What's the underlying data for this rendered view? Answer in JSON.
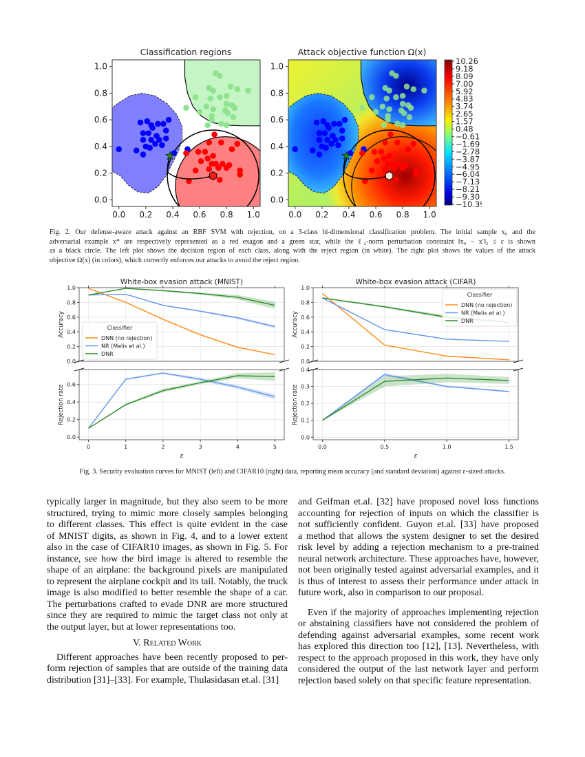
{
  "figure2": {
    "left_title": "Classification regions",
    "right_title": "Attack objective function Ω(x)",
    "x_ticks": [
      "0.0",
      "0.2",
      "0.4",
      "0.6",
      "0.8",
      "1.0"
    ],
    "y_ticks": [
      "0.0",
      "0.2",
      "0.4",
      "0.6",
      "0.8",
      "1.0"
    ],
    "colorbar": {
      "colormap": "jet",
      "ticks": [
        "10.26",
        "9.18",
        "8.09",
        "7.00",
        "5.92",
        "4.83",
        "3.74",
        "2.65",
        "1.57",
        "0.48",
        "−0.61",
        "−1.69",
        "−2.78",
        "−3.87",
        "−4.95",
        "−6.04",
        "−7.13",
        "−8.21",
        "−9.30",
        "−10.39"
      ]
    },
    "caption_lines": [
      "Fig. 2.  Our defense-aware attack against an RBF SVM with rejection, on a 3-class bi-dimensional classification problem. The initial sample x₀ and the",
      "adversarial example x* are respectively represented as a red exagon and a green star, while the ℓ₂-norm perturbation constraint ‖x₀ − x′‖₂ ≤ ε is shown",
      "as a black circle. The left plot shows the decision region of each class, along with the reject region (in white). The right plot shows the values of the attack",
      "objective Ω(x) (in colors), which correctly enforces our attacks to avoid the reject region."
    ]
  },
  "chart_data": [
    {
      "type": "scatter",
      "title": "Classification regions / Attack objective function Ω(x)",
      "xlim": [
        -0.05,
        1.05
      ],
      "ylim": [
        -0.05,
        1.05
      ],
      "classes": [
        {
          "color": "#0000ff",
          "region_color": "#8080ff",
          "points": [
            [
              0.0,
              0.38
            ],
            [
              0.13,
              0.37
            ],
            [
              0.18,
              0.34
            ],
            [
              0.16,
              0.58
            ],
            [
              0.21,
              0.59
            ],
            [
              0.24,
              0.56
            ],
            [
              0.29,
              0.57
            ],
            [
              0.33,
              0.57
            ],
            [
              0.37,
              0.6
            ],
            [
              0.35,
              0.52
            ],
            [
              0.18,
              0.5
            ],
            [
              0.22,
              0.5
            ],
            [
              0.28,
              0.48
            ],
            [
              0.18,
              0.45
            ],
            [
              0.24,
              0.45
            ],
            [
              0.3,
              0.45
            ],
            [
              0.35,
              0.46
            ],
            [
              0.2,
              0.4
            ],
            [
              0.27,
              0.42
            ],
            [
              0.32,
              0.41
            ],
            [
              0.23,
              0.39
            ],
            [
              0.25,
              0.54
            ],
            [
              0.41,
              0.35
            ],
            [
              0.51,
              0.38
            ]
          ]
        },
        {
          "color": "#8fe38f",
          "region_color": "#c5f5c5",
          "points": [
            [
              0.72,
              0.95
            ],
            [
              0.75,
              0.93
            ],
            [
              0.67,
              0.84
            ],
            [
              0.7,
              0.82
            ],
            [
              0.83,
              0.85
            ],
            [
              0.88,
              0.83
            ],
            [
              0.96,
              0.82
            ],
            [
              0.57,
              0.77
            ],
            [
              0.68,
              0.76
            ],
            [
              0.75,
              0.77
            ],
            [
              0.8,
              0.78
            ],
            [
              0.8,
              0.72
            ],
            [
              0.84,
              0.71
            ],
            [
              0.86,
              0.69
            ],
            [
              0.65,
              0.7
            ],
            [
              0.7,
              0.68
            ],
            [
              0.6,
              0.66
            ],
            [
              0.5,
              0.69
            ],
            [
              0.79,
              0.67
            ],
            [
              0.81,
              0.65
            ],
            [
              0.85,
              0.62
            ],
            [
              0.69,
              0.63
            ],
            [
              0.69,
              0.6
            ],
            [
              0.76,
              0.57
            ],
            [
              0.8,
              0.56
            ],
            [
              0.66,
              0.56
            ]
          ]
        },
        {
          "color": "#ff0000",
          "region_color": "#ff8080",
          "points": [
            [
              0.71,
              0.49
            ],
            [
              0.67,
              0.43
            ],
            [
              0.76,
              0.43
            ],
            [
              0.88,
              0.42
            ],
            [
              0.84,
              0.38
            ],
            [
              0.59,
              0.36
            ],
            [
              0.64,
              0.36
            ],
            [
              0.5,
              0.35
            ],
            [
              0.7,
              0.33
            ],
            [
              0.61,
              0.29
            ],
            [
              0.66,
              0.31
            ],
            [
              0.69,
              0.27
            ],
            [
              0.72,
              0.27
            ],
            [
              0.77,
              0.27
            ],
            [
              0.74,
              0.24
            ],
            [
              0.8,
              0.24
            ],
            [
              0.67,
              0.23
            ],
            [
              0.57,
              0.22
            ],
            [
              0.9,
              0.22
            ],
            [
              0.9,
              0.19
            ],
            [
              0.75,
              0.15
            ],
            [
              0.52,
              0.14
            ],
            [
              0.82,
              0.26
            ]
          ]
        }
      ],
      "initial_sample": [
        0.7,
        0.18
      ],
      "adversarial_example": [
        0.38,
        0.33
      ],
      "perturbation_radius": 0.34
    },
    {
      "type": "line",
      "title": "White-box evasion attack (MNIST)",
      "xlabel": "ε",
      "x": [
        0,
        1,
        2,
        3,
        4,
        5
      ],
      "x_ticks": [
        "0",
        "1",
        "2",
        "3",
        "4",
        "5"
      ],
      "xlim": [
        -0.25,
        5.25
      ],
      "grid": true,
      "legend": {
        "title": "Classifier",
        "placement": "lower-left"
      },
      "panels": [
        {
          "ylabel": "Accuracy",
          "ylim": [
            0,
            1.0
          ],
          "y_ticks": [
            "0.0",
            "0.2",
            "0.4",
            "0.6",
            "0.8",
            "1.0"
          ],
          "series": [
            {
              "name": "DNN (no rejection)",
              "color": "#ff8c1a",
              "values": [
                0.99,
                0.8,
                0.57,
                0.36,
                0.19,
                0.09
              ],
              "std": [
                0.005,
                0.008,
                0.01,
                0.01,
                0.01,
                0.008
              ]
            },
            {
              "name": "NR (Melis et al.)",
              "color": "#6495ed",
              "values": [
                0.9,
                0.91,
                0.76,
                0.68,
                0.59,
                0.47
              ],
              "std": [
                0.005,
                0.005,
                0.008,
                0.01,
                0.015,
                0.02
              ]
            },
            {
              "name": "DNR",
              "color": "#2e8b2e",
              "values": [
                0.9,
                0.99,
                0.96,
                0.92,
                0.87,
                0.76
              ],
              "std": [
                0.005,
                0.005,
                0.01,
                0.015,
                0.03,
                0.05
              ]
            }
          ]
        },
        {
          "ylabel": "Rejection rate",
          "ylim": [
            -0.03,
            0.77
          ],
          "y_ticks": [
            "0.0",
            "0.2",
            "0.4",
            "0.6"
          ],
          "series": [
            {
              "name": "NR (Melis et al.)",
              "color": "#6495ed",
              "values": [
                0.1,
                0.66,
                0.73,
                0.66,
                0.57,
                0.46
              ],
              "std": [
                0.003,
                0.008,
                0.01,
                0.02,
                0.02,
                0.03
              ]
            },
            {
              "name": "DNR",
              "color": "#2e8b2e",
              "values": [
                0.1,
                0.37,
                0.53,
                0.62,
                0.7,
                0.69
              ],
              "std": [
                0.003,
                0.01,
                0.02,
                0.015,
                0.03,
                0.05
              ]
            }
          ]
        }
      ]
    },
    {
      "type": "line",
      "title": "White-box evasion attack (CIFAR)",
      "xlabel": "ε",
      "x": [
        0,
        0.5,
        1.0,
        1.5
      ],
      "x_ticks": [
        "0.0",
        "0.5",
        "1.0",
        "1.5"
      ],
      "xlim": [
        -0.075,
        1.575
      ],
      "grid": true,
      "legend": {
        "title": "Classifier",
        "placement": "upper-right"
      },
      "panels": [
        {
          "ylabel": "Accuracy",
          "ylim": [
            0,
            1.0
          ],
          "y_ticks": [
            "0.0",
            "0.2",
            "0.4",
            "0.6",
            "0.8",
            "1.0"
          ],
          "series": [
            {
              "name": "DNN (no rejection)",
              "color": "#ff8c1a",
              "values": [
                0.92,
                0.22,
                0.07,
                0.02
              ],
              "std": [
                0.005,
                0.005,
                0.005,
                0.005
              ]
            },
            {
              "name": "NR (Melis et al.)",
              "color": "#6495ed",
              "values": [
                0.86,
                0.43,
                0.3,
                0.27
              ],
              "std": [
                0.005,
                0.005,
                0.005,
                0.005
              ]
            },
            {
              "name": "DNR",
              "color": "#2e8b2e",
              "values": [
                0.86,
                0.74,
                0.6,
                0.53
              ],
              "std": [
                0.005,
                0.015,
                0.02,
                0.015
              ]
            }
          ]
        },
        {
          "ylabel": "Rejection rate",
          "ylim": [
            -0.015,
            0.4
          ],
          "y_ticks": [
            "0.0",
            "0.1",
            "0.2",
            "0.3",
            "0.4"
          ],
          "series": [
            {
              "name": "NR (Melis et al.)",
              "color": "#6495ed",
              "values": [
                0.1,
                0.37,
                0.3,
                0.27
              ],
              "std": [
                0.002,
                0.01,
                0.005,
                0.005
              ]
            },
            {
              "name": "DNR",
              "color": "#2e8b2e",
              "values": [
                0.1,
                0.33,
                0.35,
                0.335
              ],
              "std": [
                0.002,
                0.03,
                0.025,
                0.02
              ]
            }
          ]
        }
      ]
    }
  ],
  "figure3": {
    "caption": "Fig. 3.  Security evaluation curves for MNIST (left) and CIFAR10 (right) data, reporting mean accuracy (and standard deviation) against ε-sized attacks."
  },
  "body": {
    "left_para1": [
      "typically larger in magnitude, but they also seem to be more",
      "structured, trying to mimic more closely samples belonging",
      "to different classes. This effect is quite evident in the case",
      "of MNIST digits, as shown in Fig. 4, and to a lower extent",
      "also in the case of CIFAR10 images, as shown in Fig. 5. For",
      "instance, see how the bird image is altered to resemble the",
      "shape of an airplane: the background pixels are manipulated",
      "to represent the airplane cockpit and its tail. Notably, the truck",
      "image is also modified to better resemble the shape of a car.",
      "The perturbations crafted to evade DNR are more structured",
      "since they are required to mimic the target class not only at",
      "the output layer, but at lower representations too."
    ],
    "section_heading": "V. Related Work",
    "left_para2": [
      "Different approaches have been recently proposed to per-",
      "form rejection of samples that are outside of the training data",
      "distribution [31]–[33]. For example, Thulasidasan et.al. [31]"
    ],
    "right_para1": [
      "and Geifman et.al. [32] have proposed novel loss functions",
      "accounting for rejection of inputs on which the classifier is",
      "not sufficiently confident. Guyon et.al. [33] have proposed",
      "a method that allows the system designer to set the desired",
      "risk level by adding a rejection mechanism to a pre-trained",
      "neural network architecture. These approaches have, however,",
      "not been originally tested against adversarial examples, and it",
      "is thus of interest to assess their performance under attack in",
      "future work, also in comparison to our proposal."
    ],
    "right_para2": [
      "Even if the majority of approaches implementing rejection",
      "or abstaining classifiers have not considered the problem of",
      "defending against adversarial examples, some recent work",
      "has explored this direction too [12], [13]. Nevertheless, with",
      "respect to the approach proposed in this work, they have only",
      "considered the output of the last network layer and perform",
      "rejection based solely on that specific feature representation."
    ]
  }
}
